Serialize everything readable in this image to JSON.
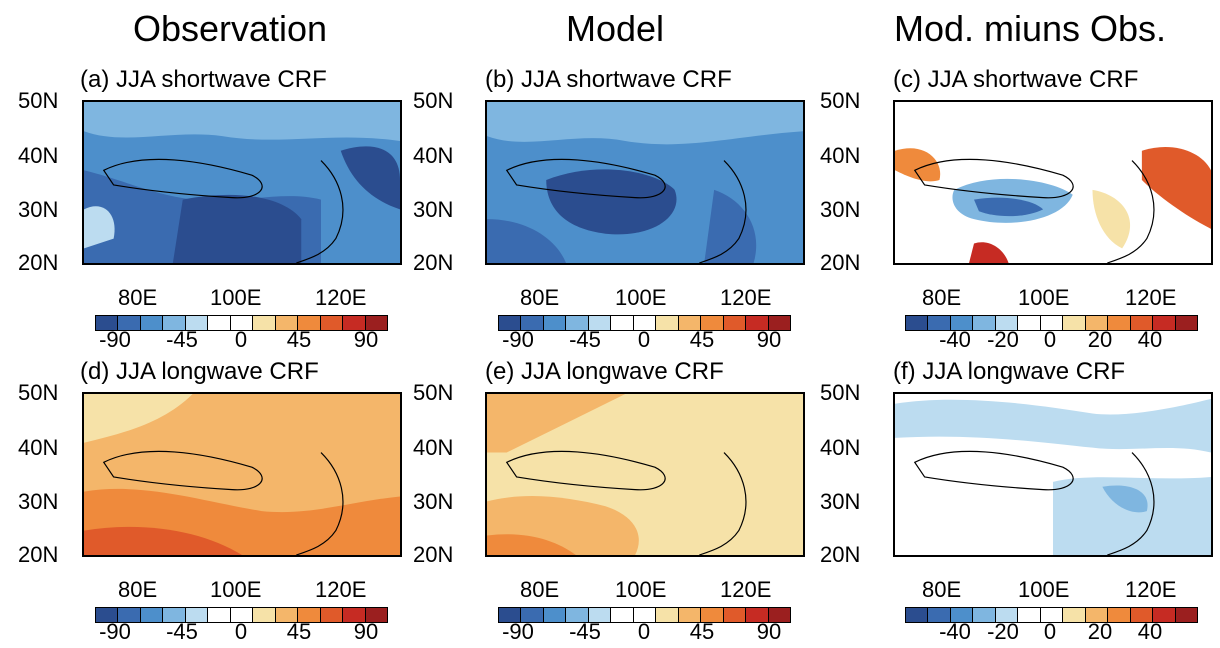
{
  "columns": [
    "Observation",
    "Model",
    "Mod. miuns Obs."
  ],
  "panels": [
    {
      "title": "(a) JJA shortwave CRF"
    },
    {
      "title": "(b) JJA shortwave CRF"
    },
    {
      "title": "(c) JJA shortwave CRF"
    },
    {
      "title": "(d) JJA longwave CRF"
    },
    {
      "title": "(e) JJA longwave CRF"
    },
    {
      "title": "(f) JJA longwave CRF"
    }
  ],
  "lat_labels": [
    "50N",
    "40N",
    "30N",
    "20N"
  ],
  "lon_labels": [
    "80E",
    "100E",
    "120E"
  ],
  "colorbar": {
    "colors": [
      "#2b4d8f",
      "#3a6bb0",
      "#4d8fcb",
      "#7fb6e0",
      "#bcdcf0",
      "#ffffff",
      "#ffffff",
      "#f6e2a8",
      "#f4b66a",
      "#ef8a3c",
      "#e05a2a",
      "#c62b23",
      "#9b1f1f"
    ],
    "labels_main": [
      "-90",
      "-45",
      "0",
      "45",
      "90"
    ],
    "labels_diff": [
      "-40",
      "-20",
      "0",
      "20",
      "40"
    ]
  },
  "chart_data": [
    {
      "type": "heatmap",
      "panel": "a",
      "title": "(a) JJA shortwave CRF",
      "variable": "shortwave CRF",
      "season": "JJA",
      "lon_range": [
        70,
        130
      ],
      "lat_range": [
        20,
        50
      ],
      "color_range": [
        -90,
        90
      ],
      "dominant_sign": "negative"
    },
    {
      "type": "heatmap",
      "panel": "b",
      "title": "(b) JJA shortwave CRF",
      "variable": "shortwave CRF",
      "season": "JJA",
      "lon_range": [
        70,
        130
      ],
      "lat_range": [
        20,
        50
      ],
      "color_range": [
        -90,
        90
      ],
      "dominant_sign": "negative"
    },
    {
      "type": "heatmap",
      "panel": "c",
      "title": "(c) JJA shortwave CRF",
      "variable": "shortwave CRF difference",
      "season": "JJA",
      "lon_range": [
        70,
        130
      ],
      "lat_range": [
        20,
        50
      ],
      "color_range": [
        -40,
        40
      ],
      "dominant_sign": "mixed"
    },
    {
      "type": "heatmap",
      "panel": "d",
      "title": "(d) JJA longwave CRF",
      "variable": "longwave CRF",
      "season": "JJA",
      "lon_range": [
        70,
        130
      ],
      "lat_range": [
        20,
        50
      ],
      "color_range": [
        -90,
        90
      ],
      "dominant_sign": "positive"
    },
    {
      "type": "heatmap",
      "panel": "e",
      "title": "(e) JJA longwave CRF",
      "variable": "longwave CRF",
      "season": "JJA",
      "lon_range": [
        70,
        130
      ],
      "lat_range": [
        20,
        50
      ],
      "color_range": [
        -90,
        90
      ],
      "dominant_sign": "positive"
    },
    {
      "type": "heatmap",
      "panel": "f",
      "title": "(f) JJA longwave CRF",
      "variable": "longwave CRF difference",
      "season": "JJA",
      "lon_range": [
        70,
        130
      ],
      "lat_range": [
        20,
        50
      ],
      "color_range": [
        -40,
        40
      ],
      "dominant_sign": "negative"
    }
  ]
}
